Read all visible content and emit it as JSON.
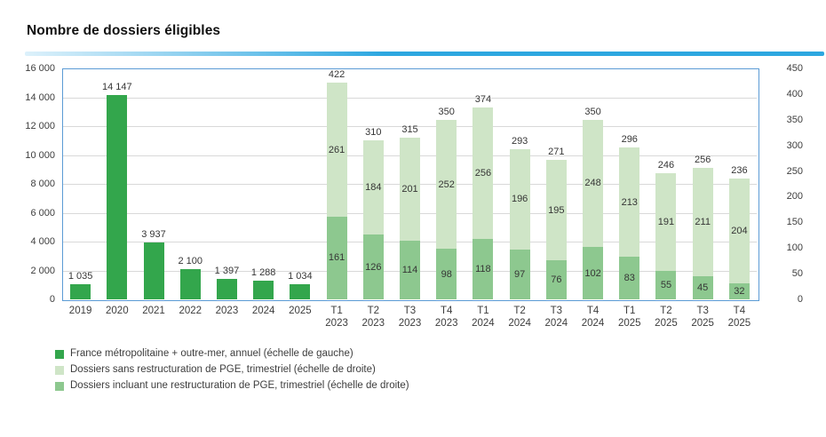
{
  "title": "Nombre de dossiers éligibles",
  "colors": {
    "annual_bar": "#33a64c",
    "quarterly_sans_bar": "#cfe5c7",
    "quarterly_avec_bar": "#8dc88f",
    "plot_border": "#5b9bd5",
    "gridline": "#d9d9d9",
    "underline_start": "#ddf1fb",
    "underline_end": "#2da7e0",
    "title_text": "#111111",
    "label_text": "#3d3d3d"
  },
  "chart_data": {
    "type": "bar",
    "title": "Nombre de dossiers éligibles",
    "grid": "horizontal",
    "legend_position": "bottom-left",
    "left_axis": {
      "min": 0,
      "max": 16000,
      "tick_labels": [
        "16 000",
        "14 000",
        "12 000",
        "10 000",
        "8 000",
        "6 000",
        "4 000",
        "2 000",
        "0"
      ]
    },
    "right_axis": {
      "min": 0,
      "max": 450,
      "tick_labels": [
        "450",
        "400",
        "350",
        "300",
        "250",
        "200",
        "150",
        "100",
        "50",
        "0"
      ]
    },
    "annual": {
      "legend": "France métropolitaine + outre-mer, annuel (échelle de gauche)",
      "axis": "left",
      "categories": [
        "2019",
        "2020",
        "2021",
        "2022",
        "2023",
        "2024",
        "2025"
      ],
      "values": [
        1035,
        14147,
        3937,
        2100,
        1397,
        1288,
        1034
      ],
      "value_labels": [
        "1 035",
        "14 147",
        "3 937",
        "2 100",
        "1 397",
        "1 288",
        "1 034"
      ]
    },
    "quarterly": {
      "axis": "right",
      "categories": [
        "T1 2023",
        "T2 2023",
        "T3 2023",
        "T4 2023",
        "T1 2024",
        "T2 2024",
        "T3 2024",
        "T4 2024",
        "T1 2025",
        "T2 2025",
        "T3 2025",
        "T4 2025"
      ],
      "series": [
        {
          "name": "Dossiers sans restructuration de PGE, trimestriel (échelle de droite)",
          "stack_position": "top",
          "values": [
            261,
            184,
            201,
            252,
            256,
            196,
            195,
            248,
            213,
            191,
            211,
            204
          ]
        },
        {
          "name": "Dossiers incluant une restructuration de PGE, trimestriel (échelle de droite)",
          "stack_position": "bottom",
          "values": [
            161,
            126,
            114,
            98,
            118,
            97,
            76,
            102,
            83,
            55,
            45,
            32
          ]
        }
      ],
      "totals": [
        422,
        310,
        315,
        350,
        374,
        293,
        271,
        350,
        296,
        246,
        256,
        236
      ]
    }
  },
  "legend": {
    "items": [
      {
        "label": "France métropolitaine + outre-mer, annuel (échelle de gauche)",
        "color_key": "annual_bar"
      },
      {
        "label": "Dossiers sans restructuration de PGE, trimestriel (échelle de droite)",
        "color_key": "quarterly_sans_bar"
      },
      {
        "label": "Dossiers incluant une restructuration de PGE, trimestriel (échelle de droite)",
        "color_key": "quarterly_avec_bar"
      }
    ]
  }
}
